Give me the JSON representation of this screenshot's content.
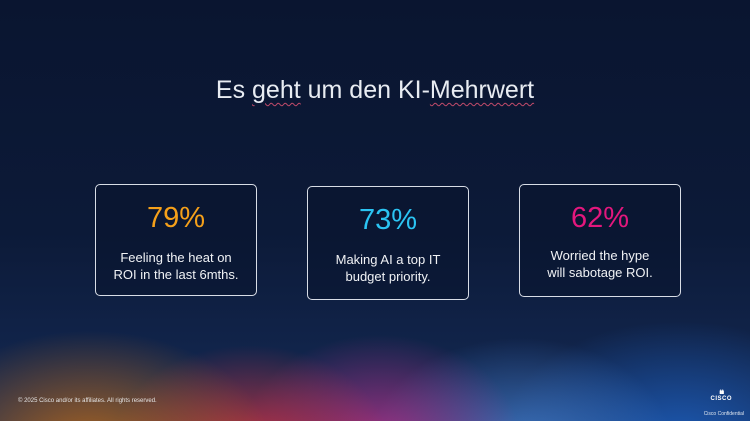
{
  "title": {
    "part1": "Es ",
    "word_geht": "geht",
    "part2": " um den KI-",
    "word_mehrwert": "Mehrwert"
  },
  "cards": [
    {
      "value": "79%",
      "text": "Feeling the heat on ROI in the last 6mths.",
      "color": "#f5a01a"
    },
    {
      "value": "73%",
      "text": "Making AI a top IT budget priority.",
      "color": "#2bc4f3"
    },
    {
      "value": "62%",
      "text": "Worried the hype will sabotage ROI.",
      "color": "#e3177d"
    }
  ],
  "footer": {
    "copyright": "© 2025 Cisco and/or its affiliates. All rights reserved.",
    "logo": "CISCO",
    "confidential": "Cisco Confidential"
  }
}
